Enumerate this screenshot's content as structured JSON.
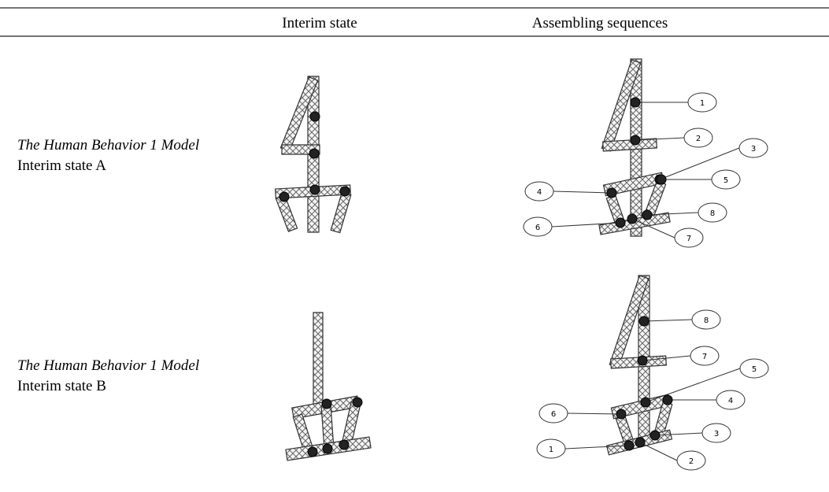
{
  "table": {
    "header": [
      "Interim state",
      "Assembling sequences"
    ],
    "rows": [
      {
        "title": "The Human Behavior 1 Model",
        "subtitle": "Interim state A",
        "callouts": [
          1,
          2,
          3,
          4,
          5,
          6,
          7,
          8
        ]
      },
      {
        "title": "The Human Behavior 1 Model",
        "subtitle": "Interim state B",
        "callouts": [
          8,
          7,
          5,
          4,
          6,
          3,
          1,
          2
        ]
      }
    ]
  }
}
